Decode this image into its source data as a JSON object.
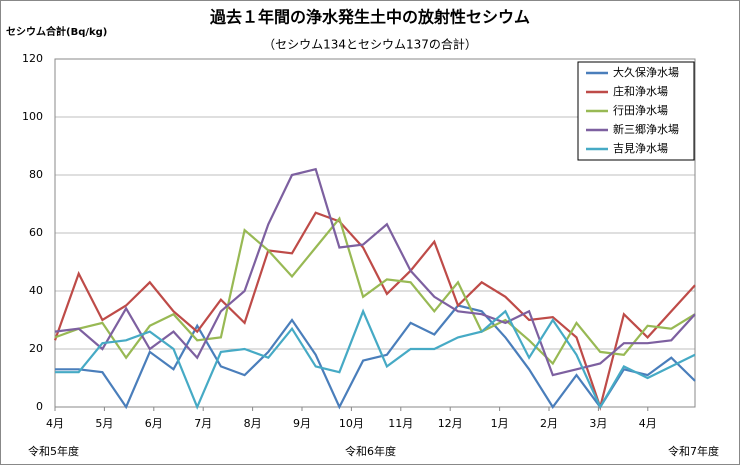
{
  "chart_data": {
    "type": "line",
    "title": "過去１年間の浄水発生土中の放射性セシウム",
    "subtitle": "（セシウム134とセシウム137の合計）",
    "ylabel": "セシウム合計(Bq/kg)",
    "ylim": [
      0,
      120
    ],
    "yticks": [
      0,
      20,
      40,
      60,
      80,
      100,
      120
    ],
    "grid": true,
    "legend": "upper right",
    "month_labels": [
      "4月",
      "5月",
      "6月",
      "7月",
      "8月",
      "9月",
      "10月",
      "11月",
      "12月",
      "1月",
      "2月",
      "3月",
      "4月"
    ],
    "annotations": [
      "令和5年度",
      "令和6年度",
      "令和7年度"
    ],
    "series": [
      {
        "name": "大久保浄水場",
        "color": "#4a7ebb",
        "values": [
          13,
          13,
          12,
          0,
          19,
          13,
          28,
          14,
          11,
          19,
          30,
          18,
          0,
          16,
          18,
          29,
          25,
          35,
          33,
          24,
          13,
          0,
          11,
          0,
          13,
          11,
          17,
          9
        ]
      },
      {
        "name": "庄和浄水場",
        "color": "#be4b48",
        "values": [
          23,
          46,
          30,
          35,
          43,
          33,
          26,
          37,
          29,
          54,
          53,
          67,
          64,
          55,
          39,
          47,
          57,
          35,
          43,
          38,
          30,
          31,
          24,
          0,
          32,
          24,
          33,
          42
        ]
      },
      {
        "name": "行田浄水場",
        "color": "#98b954",
        "values": [
          24,
          27,
          29,
          17,
          28,
          32,
          23,
          24,
          61,
          54,
          45,
          55,
          65,
          38,
          44,
          43,
          33,
          43,
          26,
          30,
          23,
          15,
          29,
          19,
          18,
          28,
          27,
          32
        ]
      },
      {
        "name": "新三郷浄水場",
        "color": "#7d60a0",
        "values": [
          26,
          27,
          20,
          34,
          20,
          26,
          17,
          33,
          40,
          63,
          80,
          82,
          55,
          56,
          63,
          47,
          38,
          33,
          32,
          29,
          33,
          11,
          13,
          15,
          22,
          22,
          23,
          32
        ]
      },
      {
        "name": "吉見浄水場",
        "color": "#46aac5",
        "values": [
          12,
          12,
          22,
          23,
          26,
          20,
          0,
          19,
          20,
          17,
          27,
          14,
          12,
          33,
          14,
          20,
          20,
          24,
          26,
          33,
          17,
          30,
          18,
          0,
          14,
          10,
          14,
          18
        ]
      }
    ]
  }
}
